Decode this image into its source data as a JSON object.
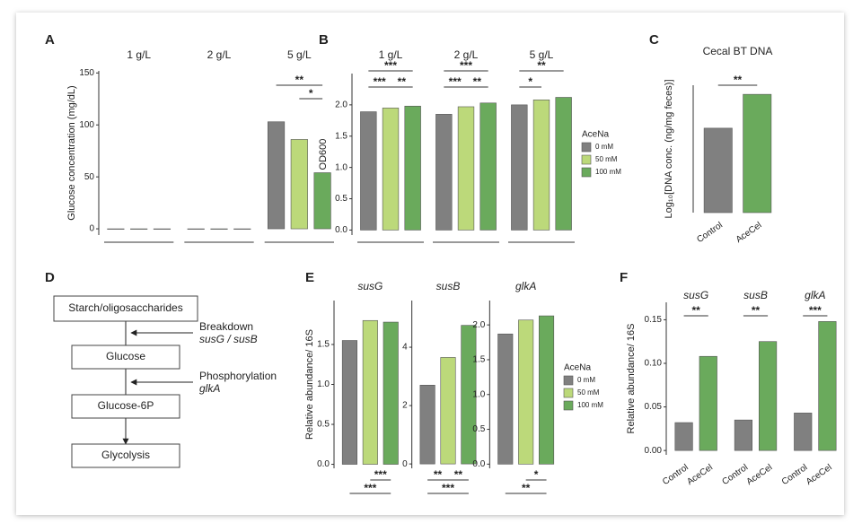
{
  "chart_data": [
    {
      "type": "bar",
      "panel": "A",
      "y_label": "Glucose concentration (mg/dL)",
      "ylim": [
        -6,
        152
      ],
      "yticks": [
        0,
        50,
        100,
        150
      ],
      "colors": [
        "#808080",
        "#bcd97a",
        "#6aaa5c"
      ],
      "facets": [
        {
          "title": "1 g/L",
          "values": [
            0,
            0,
            0
          ],
          "annotations": []
        },
        {
          "title": "2 g/L",
          "values": [
            0,
            0,
            0
          ],
          "annotations": []
        },
        {
          "title": "5 g/L",
          "values": [
            103,
            86,
            54
          ],
          "annotations": [
            {
              "text": "**",
              "between": [
                0,
                2
              ]
            },
            {
              "text": "*",
              "between": [
                1,
                2
              ]
            }
          ]
        }
      ]
    },
    {
      "type": "bar",
      "panel": "B",
      "y_label": "OD600",
      "ylim": [
        -0.08,
        2.5
      ],
      "yticks": [
        {
          "value": 0,
          "label": "0.0"
        },
        {
          "value": 0.5,
          "label": "0.5"
        },
        {
          "value": 1,
          "label": "1.0"
        },
        {
          "value": 1.5,
          "label": "1.5"
        },
        {
          "value": 2,
          "label": "2.0"
        }
      ],
      "colors": [
        "#808080",
        "#bcd97a",
        "#6aaa5c"
      ],
      "legend_title": "AceNa",
      "groups": [
        "0 mM",
        "50 mM",
        "100 mM"
      ],
      "facets": [
        {
          "title": "1 g/L",
          "values": [
            1.89,
            1.95,
            1.98
          ],
          "annotations": [
            {
              "text": "***",
              "between": [
                0,
                2
              ]
            },
            {
              "text": "***",
              "between": [
                0,
                1
              ]
            },
            {
              "text": "**",
              "between": [
                1,
                2
              ]
            }
          ]
        },
        {
          "title": "2 g/L",
          "values": [
            1.85,
            1.97,
            2.03
          ],
          "annotations": [
            {
              "text": "***",
              "between": [
                0,
                2
              ]
            },
            {
              "text": "***",
              "between": [
                0,
                1
              ]
            },
            {
              "text": "**",
              "between": [
                1,
                2
              ]
            }
          ]
        },
        {
          "title": "5 g/L",
          "values": [
            2.0,
            2.08,
            2.12
          ],
          "annotations": [
            {
              "text": "**",
              "between": [
                0,
                2
              ]
            },
            {
              "text": "*",
              "between": [
                0,
                1
              ]
            }
          ]
        }
      ]
    },
    {
      "type": "bar",
      "panel": "C",
      "title": "Cecal BT DNA",
      "y_label": "Log₁₀[DNA conc. (ng/mg feces)]",
      "ylim": [
        0,
        3.5
      ],
      "categories": [
        "Control",
        "AceCel"
      ],
      "colors": [
        "#808080",
        "#6aaa5c"
      ],
      "facets": [
        {
          "values": [
            2.32,
            3.25
          ],
          "annotations": [
            {
              "text": "**",
              "between": [
                0,
                1
              ]
            }
          ]
        }
      ]
    },
    {
      "type": "bar",
      "panel": "E",
      "y_label": "Relative abundance/ 16S",
      "colors": [
        "#808080",
        "#bcd97a",
        "#6aaa5c"
      ],
      "legend_title": "AceNa",
      "groups": [
        "0 mM",
        "50 mM",
        "100 mM"
      ],
      "annotation_side": "below",
      "facets": [
        {
          "title": "susG",
          "values": [
            1.55,
            1.8,
            1.78
          ],
          "ylim": [
            -0.05,
            2.05
          ],
          "yticks": [
            {
              "value": 0,
              "label": "0.0"
            },
            {
              "value": 0.5,
              "label": "0.5"
            },
            {
              "value": 1,
              "label": "1.0"
            },
            {
              "value": 1.5,
              "label": "1.5"
            }
          ],
          "annotations": [
            {
              "text": "***",
              "between": [
                1,
                2
              ]
            },
            {
              "text": "***",
              "between": [
                0,
                2
              ]
            }
          ]
        },
        {
          "title": "susB",
          "values": [
            2.7,
            3.65,
            4.75
          ],
          "ylim": [
            -0.15,
            5.6
          ],
          "yticks": [
            0,
            2,
            4
          ],
          "annotations": [
            {
              "text": "**",
              "between": [
                0,
                1
              ]
            },
            {
              "text": "**",
              "between": [
                1,
                2
              ]
            },
            {
              "text": "***",
              "between": [
                0,
                2
              ]
            }
          ]
        },
        {
          "title": "glkA",
          "values": [
            1.87,
            2.07,
            2.13
          ],
          "ylim": [
            -0.06,
            2.35
          ],
          "yticks": [
            {
              "value": 0,
              "label": "0.0"
            },
            {
              "value": 0.5,
              "label": "0.5"
            },
            {
              "value": 1,
              "label": "1.0"
            },
            {
              "value": 1.5,
              "label": "1.5"
            },
            {
              "value": 2,
              "label": "2.0"
            }
          ],
          "annotations": [
            {
              "text": "*",
              "between": [
                1,
                2
              ]
            },
            {
              "text": "**",
              "between": [
                0,
                2
              ]
            }
          ]
        }
      ]
    },
    {
      "type": "bar",
      "panel": "F",
      "y_label": "Relative abundance/ 16S",
      "ylim": [
        -0.005,
        0.17
      ],
      "yticks": [
        {
          "value": 0,
          "label": "0.00"
        },
        {
          "value": 0.05,
          "label": "0.05"
        },
        {
          "value": 0.1,
          "label": "0.10"
        },
        {
          "value": 0.15,
          "label": "0.15"
        }
      ],
      "categories": [
        "Control",
        "AceCel"
      ],
      "colors": [
        "#808080",
        "#6aaa5c"
      ],
      "facets": [
        {
          "title": "susG",
          "values": [
            0.032,
            0.108
          ],
          "annotations": [
            {
              "text": "**",
              "between": [
                0,
                1
              ]
            }
          ]
        },
        {
          "title": "susB",
          "values": [
            0.035,
            0.125
          ],
          "annotations": [
            {
              "text": "**",
              "between": [
                0,
                1
              ]
            }
          ]
        },
        {
          "title": "glkA",
          "values": [
            0.043,
            0.148
          ],
          "annotations": [
            {
              "text": "***",
              "between": [
                0,
                1
              ]
            }
          ]
        }
      ]
    }
  ],
  "diagram": {
    "panel": "D",
    "nodes": [
      "Starch/oligosaccharides",
      "Glucose",
      "Glucose-6P",
      "Glycolysis"
    ],
    "steps": [
      {
        "label": "Breakdown",
        "genes": "susG / susB"
      },
      {
        "label": "Phosphorylation",
        "genes": "glkA"
      }
    ]
  }
}
